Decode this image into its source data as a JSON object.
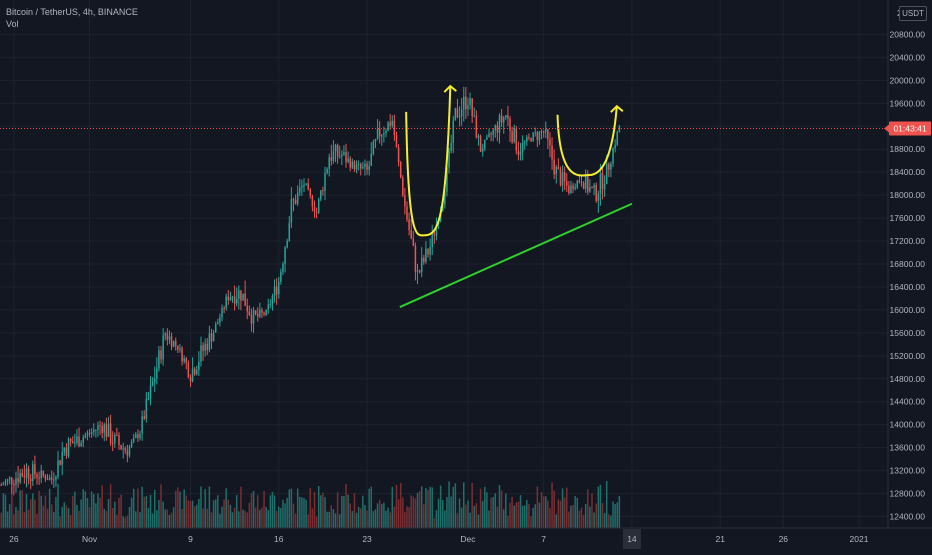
{
  "legend": {
    "symbol_line": "Bitcoin / TetherUS, 4h, BINANCE",
    "volume_label": "Vol"
  },
  "currency_label": "USDT",
  "countdown": "01:43:41",
  "colors": {
    "background": "#131722",
    "grid": "#1e222d",
    "bull": "#26a69a",
    "bear": "#ef5350",
    "vol_bull": "#1f6f6a",
    "vol_bear": "#7a2e31",
    "axis_text": "#b2b5be",
    "price_marker": "#ef5350",
    "trendline": "#2fd12b",
    "cup_curves": "#f5ee2f"
  },
  "chart_data": {
    "type": "candlestick",
    "price_axis": {
      "unit": "USDT",
      "range": [
        12200,
        21400
      ],
      "ticks": [
        12400,
        12800,
        13200,
        13600,
        14000,
        14400,
        14800,
        15200,
        15600,
        16000,
        16400,
        16800,
        17200,
        17600,
        18000,
        18400,
        18800,
        19200,
        19600,
        20000,
        20400,
        20800
      ],
      "tick_labels": [
        "12400.00",
        "12800.00",
        "13200.00",
        "13600.00",
        "14000.00",
        "14400.00",
        "14800.00",
        "15200.00",
        "15600.00",
        "16000.00",
        "16400.00",
        "16800.00",
        "17200.00",
        "17600.00",
        "18000.00",
        "18400.00",
        "18800.00",
        "19200.00",
        "19600.00",
        "20000.00",
        "20400.00",
        "20800.00"
      ],
      "top_partial_label": "2"
    },
    "time_axis": {
      "labels": [
        "26",
        "Nov",
        "9",
        "16",
        "23",
        "Dec",
        "7",
        "14",
        "21",
        "26",
        "2021"
      ],
      "positions_days": [
        -6,
        0,
        8,
        15,
        22,
        30,
        36,
        43,
        50,
        55,
        61
      ],
      "highlight": "14",
      "range_days": [
        -7.1,
        63.3
      ]
    },
    "last_price": 19160,
    "grid": true,
    "daily_path": [
      {
        "d": -7,
        "p": 12950
      },
      {
        "d": -5,
        "p": 13200
      },
      {
        "d": -3,
        "p": 13050
      },
      {
        "d": -2,
        "p": 13600
      },
      {
        "d": 0,
        "p": 13850
      },
      {
        "d": 1,
        "p": 14000
      },
      {
        "d": 2,
        "p": 13700
      },
      {
        "d": 3,
        "p": 13550
      },
      {
        "d": 4,
        "p": 13900
      },
      {
        "d": 5,
        "p": 14700
      },
      {
        "d": 6,
        "p": 15600
      },
      {
        "d": 7,
        "p": 15350
      },
      {
        "d": 8,
        "p": 14900
      },
      {
        "d": 9,
        "p": 15300
      },
      {
        "d": 10,
        "p": 15700
      },
      {
        "d": 11,
        "p": 16250
      },
      {
        "d": 12,
        "p": 16300
      },
      {
        "d": 13,
        "p": 15850
      },
      {
        "d": 14,
        "p": 15950
      },
      {
        "d": 15,
        "p": 16500
      },
      {
        "d": 16,
        "p": 17800
      },
      {
        "d": 17,
        "p": 18200
      },
      {
        "d": 18,
        "p": 17700
      },
      {
        "d": 19,
        "p": 18700
      },
      {
        "d": 20,
        "p": 18700
      },
      {
        "d": 21,
        "p": 18500
      },
      {
        "d": 22,
        "p": 18400
      },
      {
        "d": 23,
        "p": 19100
      },
      {
        "d": 24,
        "p": 19300
      },
      {
        "d": 25,
        "p": 17800
      },
      {
        "d": 26,
        "p": 16600
      },
      {
        "d": 27,
        "p": 17100
      },
      {
        "d": 28,
        "p": 17900
      },
      {
        "d": 29,
        "p": 19400
      },
      {
        "d": 30,
        "p": 19700
      },
      {
        "d": 31,
        "p": 18800
      },
      {
        "d": 32,
        "p": 19100
      },
      {
        "d": 33,
        "p": 19400
      },
      {
        "d": 34,
        "p": 18800
      },
      {
        "d": 35,
        "p": 19000
      },
      {
        "d": 36,
        "p": 19100
      },
      {
        "d": 37,
        "p": 18400
      },
      {
        "d": 38,
        "p": 18100
      },
      {
        "d": 39,
        "p": 18300
      },
      {
        "d": 40,
        "p": 18000
      },
      {
        "d": 41,
        "p": 18400
      },
      {
        "d": 42,
        "p": 19200
      }
    ],
    "trendline": {
      "from": {
        "d": 24.6,
        "p": 16050
      },
      "to": {
        "d": 43.0,
        "p": 17850
      }
    },
    "cup_curves": [
      {
        "start": {
          "d": 25.1,
          "p": 19450
        },
        "bottom": {
          "d": 26.6,
          "p": 17300
        },
        "end": {
          "d": 28.6,
          "p": 19900
        },
        "arrow": true
      },
      {
        "start": {
          "d": 37.1,
          "p": 19400
        },
        "bottom": {
          "d": 39.6,
          "p": 18350
        },
        "end": {
          "d": 41.8,
          "p": 19550
        },
        "arrow": true
      }
    ]
  }
}
